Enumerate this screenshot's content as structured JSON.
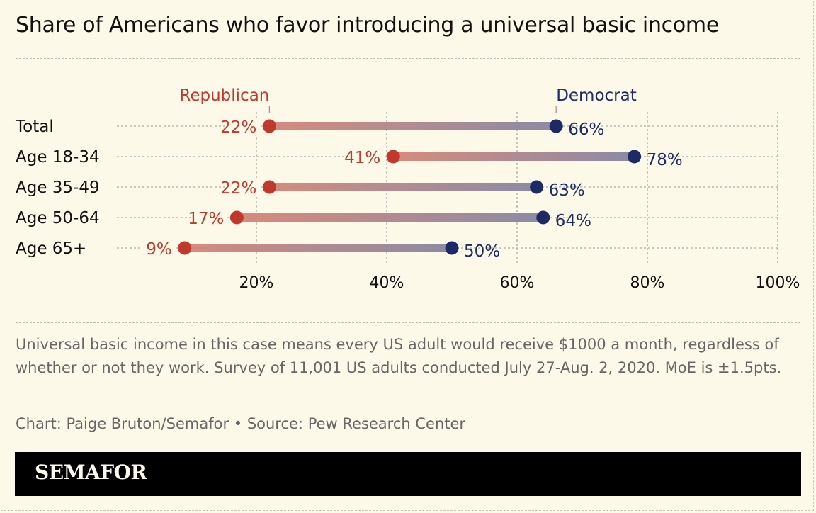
{
  "title": "Share of Americans who favor introducing a universal basic income",
  "chart_data": {
    "type": "dumbbell",
    "categories": [
      "Total",
      "Age 18-34",
      "Age 35-49",
      "Age 50-64",
      "Age 65+"
    ],
    "series": [
      {
        "name": "Republican",
        "values": [
          22,
          41,
          22,
          17,
          9
        ],
        "color": "#c0392b"
      },
      {
        "name": "Democrat",
        "values": [
          66,
          78,
          63,
          64,
          50
        ],
        "color": "#1e2a66"
      }
    ],
    "xlim": [
      0,
      100
    ],
    "xticks": [
      20,
      40,
      60,
      80,
      100
    ],
    "xtick_labels": [
      "20%",
      "40%",
      "60%",
      "80%",
      "100%"
    ],
    "value_suffix": "%",
    "grid": true
  },
  "note": "Universal basic income in this case means every US adult would receive $1000 a month, regardless of whether or not they work. Survey of 11,001 US adults conducted July 27-Aug. 2, 2020. MoE is ±1.5pts.",
  "credit": "Chart: Paige Bruton/Semafor • Source: Pew Research Center",
  "footer": {
    "logo": "SEMAFOR"
  }
}
